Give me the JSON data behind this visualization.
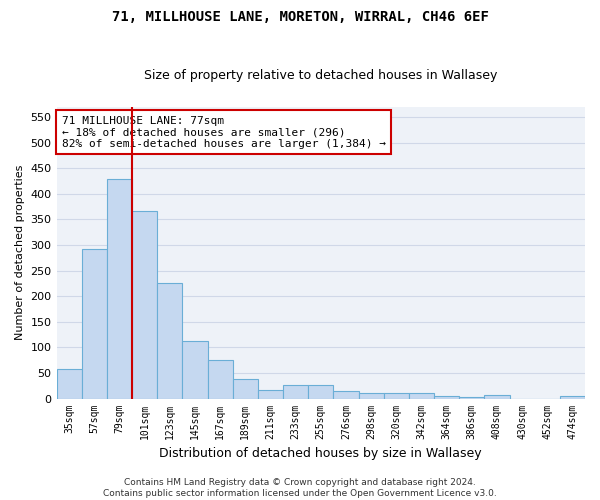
{
  "title": "71, MILLHOUSE LANE, MORETON, WIRRAL, CH46 6EF",
  "subtitle": "Size of property relative to detached houses in Wallasey",
  "xlabel": "Distribution of detached houses by size in Wallasey",
  "ylabel": "Number of detached properties",
  "categories": [
    "35sqm",
    "57sqm",
    "79sqm",
    "101sqm",
    "123sqm",
    "145sqm",
    "167sqm",
    "189sqm",
    "211sqm",
    "233sqm",
    "255sqm",
    "276sqm",
    "298sqm",
    "320sqm",
    "342sqm",
    "364sqm",
    "386sqm",
    "408sqm",
    "430sqm",
    "452sqm",
    "474sqm"
  ],
  "values": [
    57,
    293,
    428,
    367,
    225,
    113,
    75,
    38,
    17,
    27,
    27,
    15,
    10,
    10,
    10,
    5,
    3,
    6,
    0,
    0,
    5
  ],
  "bar_color": "#c5d8f0",
  "bar_edge_color": "#6aaed6",
  "bar_edge_width": 0.8,
  "vline_x_index": 2,
  "vline_color": "#cc0000",
  "annotation_text": "71 MILLHOUSE LANE: 77sqm\n← 18% of detached houses are smaller (296)\n82% of semi-detached houses are larger (1,384) →",
  "annotation_box_color": "#ffffff",
  "annotation_box_edge": "#cc0000",
  "ylim": [
    0,
    570
  ],
  "yticks": [
    0,
    50,
    100,
    150,
    200,
    250,
    300,
    350,
    400,
    450,
    500,
    550
  ],
  "grid_color": "#d0d8e8",
  "background_color": "#eef2f8",
  "footer": "Contains HM Land Registry data © Crown copyright and database right 2024.\nContains public sector information licensed under the Open Government Licence v3.0.",
  "title_fontsize": 10,
  "subtitle_fontsize": 9,
  "ylabel_fontsize": 8,
  "xlabel_fontsize": 9,
  "annotation_fontsize": 8,
  "tick_fontsize": 7
}
